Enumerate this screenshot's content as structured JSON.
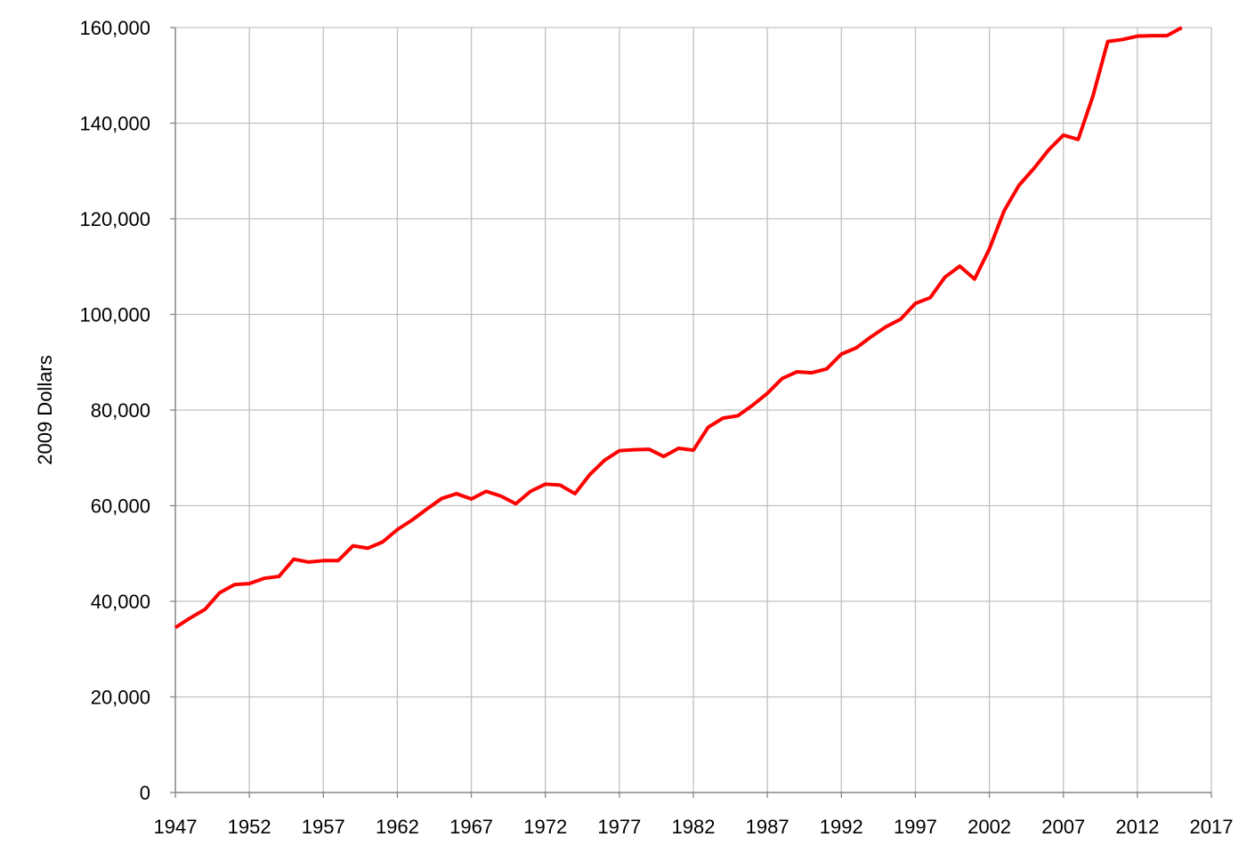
{
  "chart_data": {
    "type": "line",
    "title": "",
    "xlabel": "",
    "ylabel": "2009 Dollars",
    "xlim": [
      1947,
      2017
    ],
    "ylim": [
      0,
      160000
    ],
    "x_ticks": [
      1947,
      1952,
      1957,
      1962,
      1967,
      1972,
      1977,
      1982,
      1987,
      1992,
      1997,
      2002,
      2007,
      2012,
      2017
    ],
    "x_tick_labels": [
      "1947",
      "1952",
      "1957",
      "1962",
      "1967",
      "1972",
      "1977",
      "1982",
      "1987",
      "1992",
      "1997",
      "2002",
      "2007",
      "2012",
      "2017"
    ],
    "y_ticks": [
      0,
      20000,
      40000,
      60000,
      80000,
      100000,
      120000,
      140000,
      160000
    ],
    "y_tick_labels": [
      "0",
      "20,000",
      "40,000",
      "60,000",
      "80,000",
      "100,000",
      "120,000",
      "140,000",
      "160,000"
    ],
    "grid": {
      "horizontal": true,
      "vertical": true
    },
    "legend": "none",
    "colors": {
      "line": "#ff0000",
      "grid": "#c0c0c0",
      "axis": "#000000"
    },
    "series": [
      {
        "x": [
          1947,
          1948,
          1949,
          1950,
          1951,
          1952,
          1953,
          1954,
          1955,
          1956,
          1957,
          1958,
          1959,
          1960,
          1961,
          1962,
          1963,
          1964,
          1965,
          1966,
          1967,
          1968,
          1969,
          1970,
          1971,
          1972,
          1973,
          1974,
          1975,
          1976,
          1977,
          1978,
          1979,
          1980,
          1981,
          1982,
          1983,
          1984,
          1985,
          1986,
          1987,
          1988,
          1989,
          1990,
          1991,
          1992,
          1993,
          1994,
          1995,
          1996,
          1997,
          1998,
          1999,
          2000,
          2001,
          2002,
          2003,
          2004,
          2005,
          2006,
          2007,
          2008,
          2009,
          2010,
          2011,
          2012,
          2013,
          2014,
          2015
        ],
        "values": [
          34500,
          36500,
          38300,
          41800,
          43500,
          43700,
          44800,
          45200,
          48800,
          48200,
          48500,
          48500,
          51600,
          51100,
          52400,
          55000,
          57000,
          59300,
          61500,
          62500,
          61400,
          63000,
          62000,
          60400,
          63000,
          64500,
          64300,
          62500,
          66500,
          69500,
          71500,
          71700,
          71800,
          70300,
          72000,
          71600,
          76400,
          78300,
          78800,
          81000,
          83500,
          86600,
          88000,
          87800,
          88600,
          91700,
          93000,
          95300,
          97400,
          99000,
          102300,
          103500,
          107800,
          110100,
          107400,
          113700,
          121700,
          127000,
          130500,
          134400,
          137500,
          136600,
          145700,
          157100,
          157500,
          158200,
          158300,
          158300,
          160000
        ]
      }
    ]
  }
}
